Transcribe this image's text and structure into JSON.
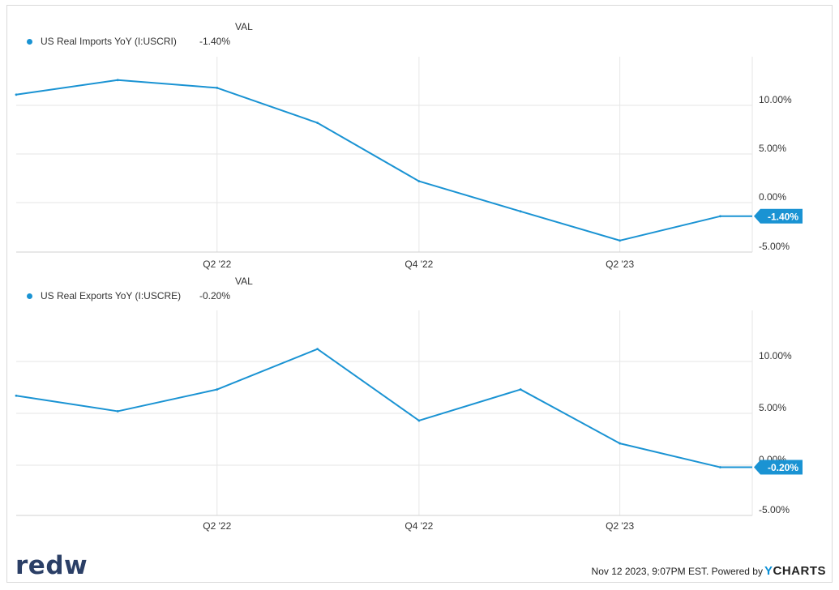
{
  "colors": {
    "line": "#1a93d3",
    "grid": "#e6e6e6",
    "text": "#333333"
  },
  "legend_header": "VAL",
  "footer": {
    "logo": "redw",
    "timestamp": "Nov 12 2023, 9:07PM EST. Powered by",
    "brand_y": "Y",
    "brand_rest": "CHARTS"
  },
  "chart_data": [
    {
      "type": "line",
      "series": [
        {
          "name": "US Real Imports YoY (I:USCRI)",
          "value_label": "-1.40%",
          "x": [
            "2021-09-30",
            "2021-12-31",
            "2022-03-31",
            "2022-06-30",
            "2022-09-30",
            "2022-12-31",
            "2023-03-31",
            "2023-06-30",
            "2023-09-30"
          ],
          "values": [
            11.1,
            12.6,
            11.8,
            8.2,
            2.2,
            -0.9,
            -3.9,
            -1.4,
            -1.4
          ]
        }
      ],
      "x_ticks": [
        "Q2 '22",
        "Q4 '22",
        "Q2 '23"
      ],
      "y_ticks": [
        "10.00%",
        "5.00%",
        "0.00%",
        "-5.00%"
      ],
      "ylim": [
        -5,
        15
      ],
      "grid": true,
      "end_label": "-1.40%"
    },
    {
      "type": "line",
      "series": [
        {
          "name": "US Real Exports YoY (I:USCRE)",
          "value_label": "-0.20%",
          "x": [
            "2021-09-30",
            "2021-12-31",
            "2022-03-31",
            "2022-06-30",
            "2022-09-30",
            "2022-12-31",
            "2023-03-31",
            "2023-06-30",
            "2023-09-30"
          ],
          "values": [
            6.7,
            5.2,
            7.3,
            11.2,
            4.3,
            7.3,
            2.1,
            -0.2,
            -0.2
          ]
        }
      ],
      "x_ticks": [
        "Q2 '22",
        "Q4 '22",
        "Q2 '23"
      ],
      "y_ticks": [
        "10.00%",
        "5.00%",
        "0.00%",
        "-5.00%"
      ],
      "ylim": [
        -5,
        15
      ],
      "grid": true,
      "end_label": "-0.20%"
    }
  ]
}
